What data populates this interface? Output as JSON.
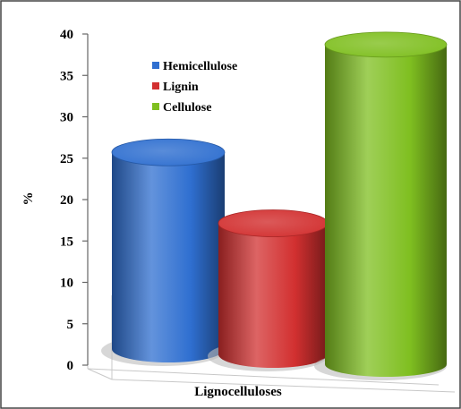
{
  "chart_data": {
    "type": "bar",
    "style": "3d-cylinder",
    "categories": [
      "Hemicellulose",
      "Lignin",
      "Cellulose"
    ],
    "values": [
      24,
      16,
      39
    ],
    "colors": [
      "#2f6fd0",
      "#d23030",
      "#7fbf20"
    ],
    "xlabel": "Lignocelluloses",
    "ylabel": "%",
    "ylim": [
      0,
      40
    ],
    "yticks": [
      0,
      5,
      10,
      15,
      20,
      25,
      30,
      35,
      40
    ],
    "legend": {
      "position": "top-left-inside",
      "entries": [
        "Hemicellulose",
        "Lignin",
        "Cellulose"
      ]
    },
    "grid": false
  }
}
